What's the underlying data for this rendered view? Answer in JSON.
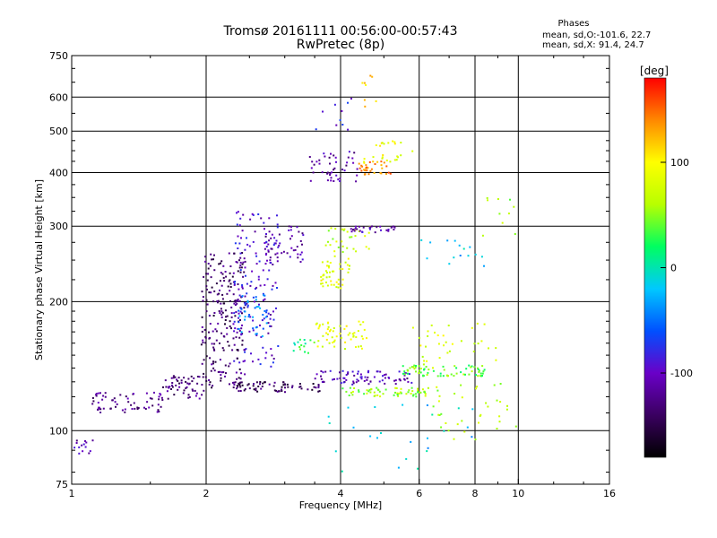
{
  "header": {
    "title": "Tromsø 20161111 00:56:00-00:57:43",
    "subtitle": "RwPretec (8p)",
    "phases": {
      "heading": "Phases",
      "line_o": "mean, sd,O:-101.6, 22.7",
      "line_x": "mean, sd,X:  91.4, 24.7"
    }
  },
  "chart_data": {
    "type": "scatter",
    "xlabel": "Frequency [MHz]",
    "ylabel": "Stationary phase Virtual Height [km]",
    "xscale": "log",
    "yscale": "log",
    "xlim": [
      1,
      16
    ],
    "ylim": [
      75,
      750
    ],
    "xticks": [
      1,
      2,
      4,
      6,
      8,
      10,
      16
    ],
    "yticks": [
      75,
      100,
      200,
      300,
      400,
      500,
      600,
      750
    ],
    "grid": true,
    "colorbar": {
      "label": "[deg]",
      "range": [
        -180,
        180
      ],
      "ticks": [
        100,
        0,
        -100
      ],
      "colors": [
        "#000000",
        "#3a0060",
        "#6a00c8",
        "#0050ff",
        "#00c8ff",
        "#00ff60",
        "#b8ff00",
        "#ffff00",
        "#ff8800",
        "#ff0000"
      ]
    },
    "clusters": [
      {
        "x": [
          1.0,
          1.12
        ],
        "y": [
          88,
          95
        ],
        "phase": -110,
        "n": 14
      },
      {
        "x": [
          1.1,
          1.6
        ],
        "y": [
          110,
          123
        ],
        "phase": -125,
        "n": 65
      },
      {
        "x": [
          1.6,
          2.0
        ],
        "y": [
          118,
          135
        ],
        "phase": -130,
        "n": 55
      },
      {
        "x": [
          1.95,
          2.45
        ],
        "y": [
          125,
          260
        ],
        "phase": -135,
        "n": 220
      },
      {
        "x": [
          2.3,
          2.9
        ],
        "y": [
          140,
          330
        ],
        "phase": -95,
        "n": 140
      },
      {
        "x": [
          2.35,
          2.75
        ],
        "y": [
          165,
          210
        ],
        "phase": -45,
        "n": 40
      },
      {
        "x": [
          2.7,
          3.3
        ],
        "y": [
          245,
          300
        ],
        "phase": -110,
        "n": 55
      },
      {
        "x": [
          2.3,
          3.6
        ],
        "y": [
          123,
          130
        ],
        "phase": -140,
        "n": 70
      },
      {
        "x": [
          3.5,
          5.8
        ],
        "y": [
          128,
          138
        ],
        "phase": -105,
        "n": 80
      },
      {
        "x": [
          5.5,
          8.5
        ],
        "y": [
          134,
          142
        ],
        "phase": 40,
        "n": 70
      },
      {
        "x": [
          4.0,
          6.2
        ],
        "y": [
          120,
          126
        ],
        "phase": 55,
        "n": 60
      },
      {
        "x": [
          3.5,
          4.6
        ],
        "y": [
          155,
          180
        ],
        "phase": 85,
        "n": 55
      },
      {
        "x": [
          3.1,
          3.5
        ],
        "y": [
          150,
          165
        ],
        "phase": 20,
        "n": 15
      },
      {
        "x": [
          3.6,
          4.2
        ],
        "y": [
          215,
          260
        ],
        "phase": 85,
        "n": 45
      },
      {
        "x": [
          3.7,
          4.7
        ],
        "y": [
          260,
          300
        ],
        "phase": 70,
        "n": 30
      },
      {
        "x": [
          4.4,
          5.2
        ],
        "y": [
          395,
          425
        ],
        "phase": 140,
        "n": 35
      },
      {
        "x": [
          4.5,
          5.8
        ],
        "y": [
          420,
          480
        ],
        "phase": 90,
        "n": 25
      },
      {
        "x": [
          3.4,
          4.4
        ],
        "y": [
          380,
          450
        ],
        "phase": -115,
        "n": 45
      },
      {
        "x": [
          4.2,
          5.3
        ],
        "y": [
          290,
          300
        ],
        "phase": -110,
        "n": 30
      },
      {
        "x": [
          5.8,
          9.0
        ],
        "y": [
          140,
          180
        ],
        "phase": 80,
        "n": 35
      },
      {
        "x": [
          6.0,
          10.0
        ],
        "y": [
          95,
          130
        ],
        "phase": 60,
        "n": 40
      },
      {
        "x": [
          6.0,
          9.0
        ],
        "y": [
          240,
          280
        ],
        "phase": -20,
        "n": 15
      },
      {
        "x": [
          8.0,
          10.5
        ],
        "y": [
          270,
          370
        ],
        "phase": 60,
        "n": 10
      },
      {
        "x": [
          3.4,
          8.0
        ],
        "y": [
          80,
          115
        ],
        "phase": -20,
        "n": 25
      },
      {
        "x": [
          3.5,
          4.5
        ],
        "y": [
          500,
          600
        ],
        "phase": -90,
        "n": 10
      },
      {
        "x": [
          4.4,
          5.0
        ],
        "y": [
          560,
          680
        ],
        "phase": 120,
        "n": 8
      }
    ]
  }
}
